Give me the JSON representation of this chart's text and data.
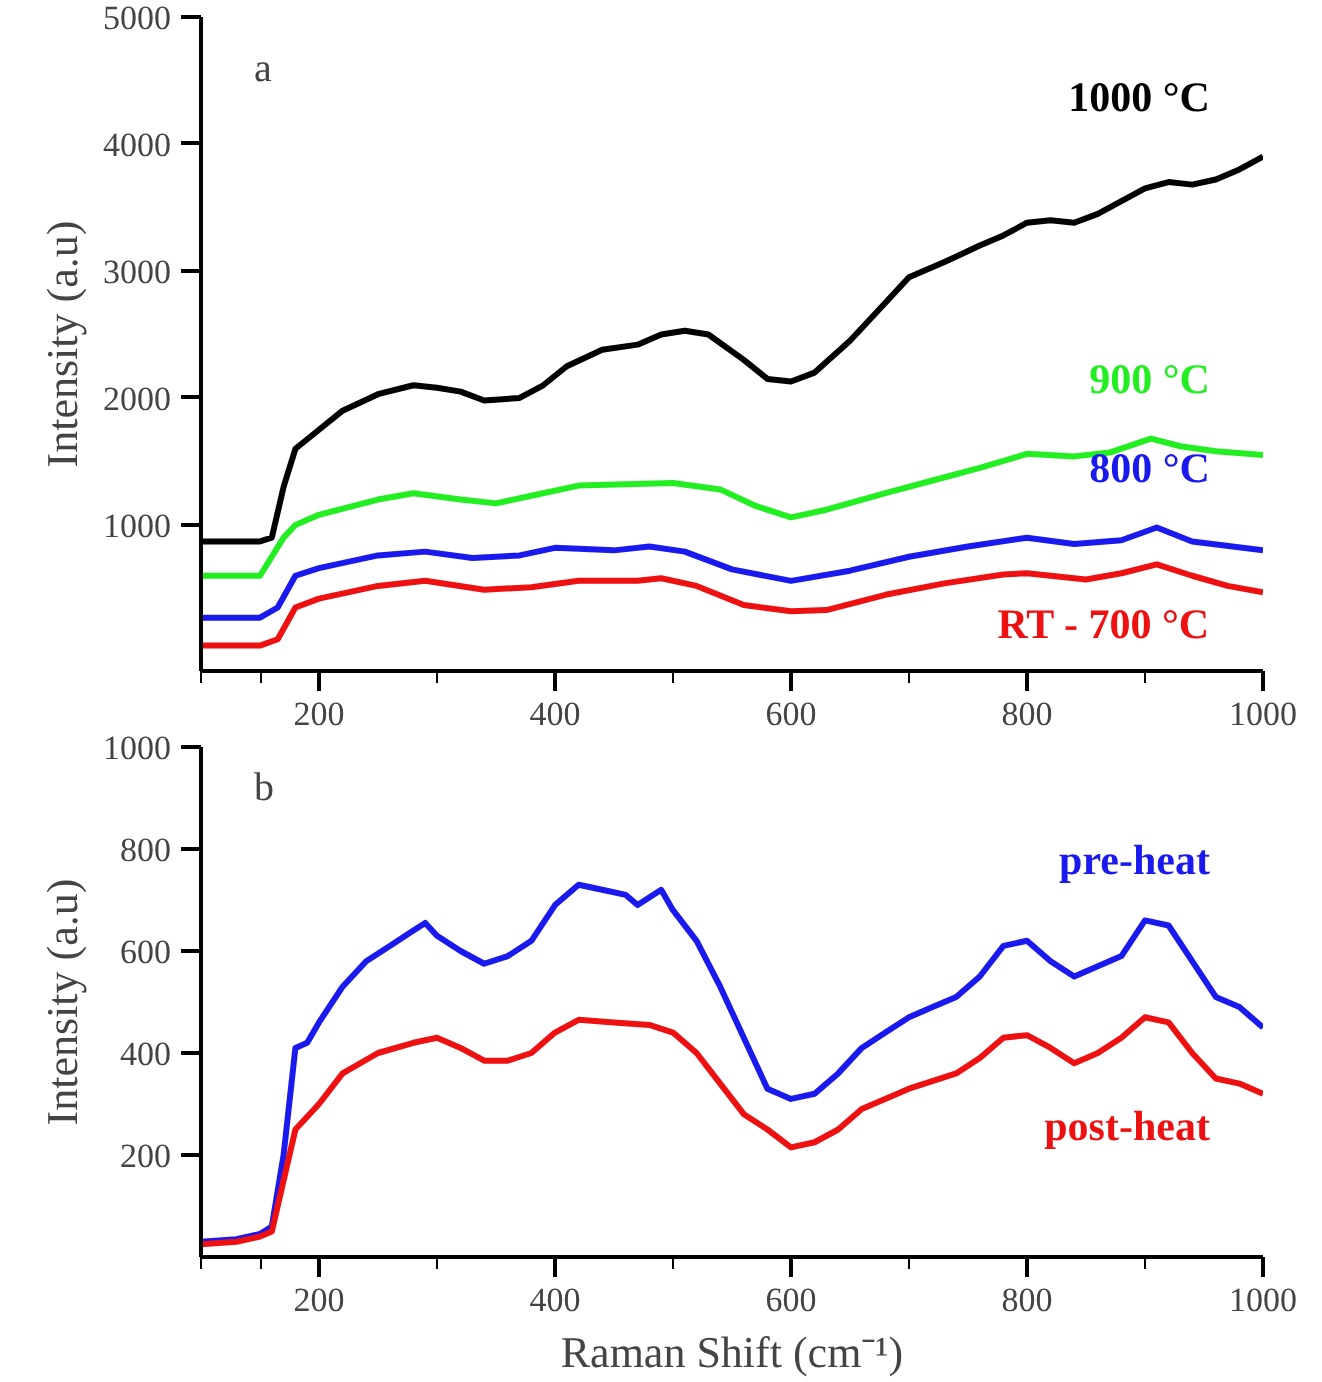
{
  "chart_data": [
    {
      "type": "line",
      "ylabel": "Intensity (a.u)",
      "annotations": [
        "a"
      ],
      "xlim": [
        100,
        1000
      ],
      "xticks": [
        200,
        400,
        600,
        800,
        1000
      ],
      "ylim": [
        -150,
        5000
      ],
      "yticks": [
        1000,
        2000,
        3000,
        4000,
        5000
      ],
      "grid": false,
      "legend": false,
      "series": [
        {
          "name": "1000 °C",
          "color": "#000000",
          "x": [
            100,
            150,
            160,
            170,
            180,
            200,
            220,
            250,
            280,
            300,
            320,
            340,
            370,
            390,
            410,
            440,
            470,
            490,
            510,
            530,
            560,
            580,
            600,
            620,
            650,
            680,
            700,
            730,
            760,
            780,
            800,
            820,
            840,
            860,
            880,
            900,
            920,
            940,
            960,
            980,
            1000
          ],
          "values": [
            870,
            870,
            900,
            1300,
            1600,
            1750,
            1900,
            2030,
            2100,
            2080,
            2050,
            1980,
            2000,
            2100,
            2250,
            2380,
            2420,
            2500,
            2530,
            2500,
            2300,
            2150,
            2130,
            2200,
            2450,
            2750,
            2950,
            3070,
            3200,
            3280,
            3380,
            3400,
            3380,
            3450,
            3550,
            3650,
            3700,
            3680,
            3720,
            3800,
            3900
          ]
        },
        {
          "name": "900 °C",
          "color": "#22ee22",
          "x": [
            100,
            150,
            170,
            180,
            200,
            250,
            280,
            320,
            350,
            380,
            420,
            460,
            500,
            540,
            570,
            600,
            630,
            680,
            720,
            760,
            800,
            840,
            870,
            905,
            930,
            960,
            1000
          ],
          "values": [
            600,
            600,
            900,
            1000,
            1080,
            1200,
            1250,
            1200,
            1170,
            1230,
            1310,
            1320,
            1330,
            1280,
            1150,
            1060,
            1120,
            1250,
            1350,
            1450,
            1560,
            1540,
            1570,
            1680,
            1620,
            1580,
            1550
          ]
        },
        {
          "name": "800 °C",
          "color": "#1a1aee",
          "x": [
            100,
            150,
            165,
            180,
            200,
            250,
            290,
            330,
            370,
            400,
            450,
            480,
            510,
            550,
            600,
            650,
            700,
            750,
            800,
            840,
            880,
            910,
            940,
            1000
          ],
          "values": [
            270,
            270,
            350,
            600,
            660,
            760,
            790,
            740,
            760,
            820,
            800,
            830,
            790,
            650,
            560,
            640,
            750,
            830,
            900,
            850,
            880,
            980,
            870,
            800
          ]
        },
        {
          "name": "RT - 700 °C",
          "color": "#ee1111",
          "x": [
            100,
            150,
            165,
            180,
            200,
            250,
            290,
            340,
            380,
            420,
            470,
            490,
            520,
            560,
            600,
            630,
            680,
            730,
            780,
            800,
            850,
            880,
            910,
            940,
            970,
            1000
          ],
          "values": [
            50,
            50,
            100,
            350,
            420,
            520,
            560,
            490,
            510,
            560,
            560,
            580,
            520,
            370,
            320,
            330,
            450,
            540,
            610,
            620,
            570,
            620,
            690,
            600,
            520,
            470
          ]
        }
      ]
    },
    {
      "type": "line",
      "xlabel": "Raman Shift (cm⁻¹)",
      "ylabel": "Intensity (a.u)",
      "annotations": [
        "b"
      ],
      "xlim": [
        100,
        1000
      ],
      "xticks": [
        200,
        400,
        600,
        800,
        1000
      ],
      "ylim": [
        0,
        1000
      ],
      "yticks": [
        200,
        400,
        600,
        800,
        1000
      ],
      "grid": false,
      "legend": false,
      "series": [
        {
          "name": "pre-heat",
          "color": "#1a1aee",
          "x": [
            100,
            130,
            150,
            160,
            170,
            180,
            190,
            200,
            220,
            240,
            260,
            280,
            290,
            300,
            320,
            340,
            360,
            380,
            400,
            420,
            440,
            460,
            470,
            490,
            500,
            520,
            540,
            560,
            580,
            600,
            620,
            640,
            660,
            680,
            700,
            720,
            740,
            760,
            780,
            800,
            820,
            840,
            860,
            880,
            900,
            920,
            940,
            960,
            980,
            1000
          ],
          "values": [
            30,
            35,
            45,
            60,
            200,
            410,
            420,
            460,
            530,
            580,
            610,
            640,
            655,
            630,
            600,
            575,
            590,
            620,
            690,
            730,
            720,
            710,
            690,
            720,
            680,
            620,
            530,
            430,
            330,
            310,
            320,
            360,
            410,
            440,
            470,
            490,
            510,
            550,
            610,
            620,
            580,
            550,
            570,
            590,
            660,
            650,
            580,
            510,
            490,
            450
          ]
        },
        {
          "name": "post-heat",
          "color": "#ee1111",
          "x": [
            100,
            130,
            150,
            160,
            170,
            180,
            200,
            220,
            250,
            280,
            300,
            320,
            340,
            360,
            380,
            400,
            420,
            450,
            480,
            500,
            520,
            540,
            560,
            580,
            600,
            620,
            640,
            660,
            700,
            740,
            760,
            780,
            800,
            820,
            840,
            860,
            880,
            900,
            920,
            940,
            960,
            980,
            1000
          ],
          "values": [
            25,
            30,
            40,
            50,
            150,
            250,
            300,
            360,
            400,
            420,
            430,
            410,
            385,
            385,
            400,
            440,
            465,
            460,
            455,
            440,
            400,
            340,
            280,
            250,
            215,
            225,
            250,
            290,
            330,
            360,
            390,
            430,
            435,
            410,
            380,
            400,
            430,
            470,
            460,
            400,
            350,
            340,
            320
          ]
        }
      ]
    }
  ]
}
